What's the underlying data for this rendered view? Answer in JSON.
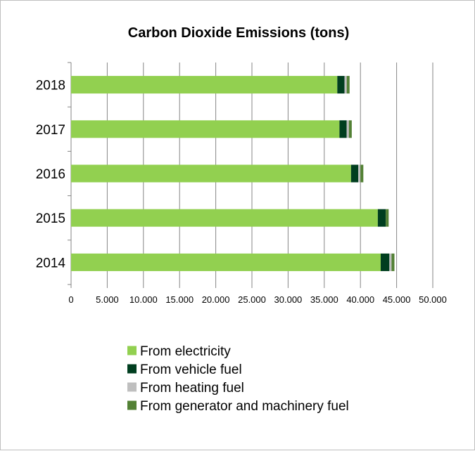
{
  "chart_data": {
    "type": "bar",
    "orientation": "horizontal",
    "stacked": true,
    "title": "Carbon Dioxide Emissions (tons)",
    "xlabel": "",
    "ylabel": "",
    "categories": [
      "2018",
      "2017",
      "2016",
      "2015",
      "2014"
    ],
    "xlim": [
      0,
      50000
    ],
    "x_tick_labels": [
      "0",
      "5.000",
      "10.000",
      "15.000",
      "20.000",
      "25.000",
      "30.000",
      "35.000",
      "40.000",
      "45.000",
      "50.000"
    ],
    "grid": "vertical",
    "legend_position": "bottom",
    "series": [
      {
        "name": "From electricity",
        "color": "#92d050",
        "values": [
          36800,
          37100,
          38700,
          42400,
          42800
        ]
      },
      {
        "name": "From vehicle fuel",
        "color": "#003e1f",
        "values": [
          1000,
          1000,
          1000,
          1100,
          1200
        ]
      },
      {
        "name": "From heating fuel",
        "color": "#bfbfbf",
        "values": [
          300,
          300,
          300,
          0,
          300
        ]
      },
      {
        "name": "From generator and machinery fuel",
        "color": "#538135",
        "values": [
          400,
          400,
          400,
          400,
          400
        ]
      }
    ]
  }
}
